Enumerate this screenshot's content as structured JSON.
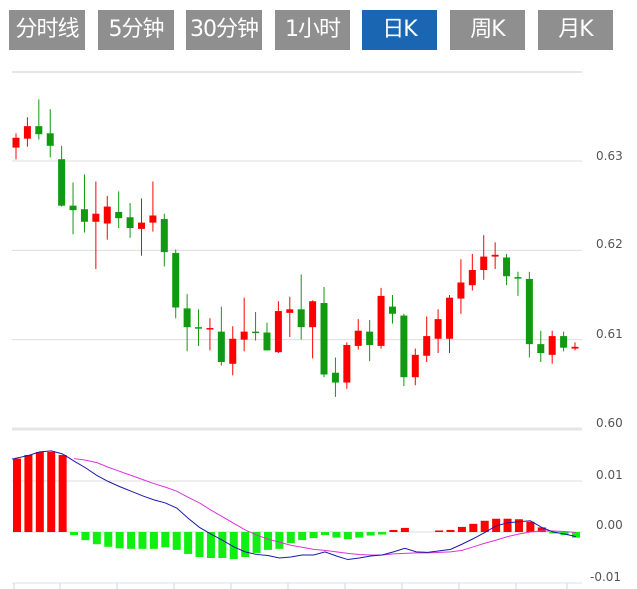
{
  "tabs": [
    {
      "label": "分时线",
      "active": false
    },
    {
      "label": "5分钟",
      "active": false
    },
    {
      "label": "30分钟",
      "active": false
    },
    {
      "label": "1小时",
      "active": false
    },
    {
      "label": "日K",
      "active": true
    },
    {
      "label": "周K",
      "active": false
    },
    {
      "label": "月K",
      "active": false
    }
  ],
  "colors": {
    "tab_bg": "#8f8f8f",
    "tab_active": "#1a66b3",
    "up": "#ff0000",
    "down": "#119911",
    "hist_up": "#ff0000",
    "hist_down": "#11ee11",
    "dif": "#1a1aaa",
    "dea": "#dd33dd",
    "grid": "#dddddd"
  },
  "chart_data": [
    {
      "type": "candlestick",
      "yticks": [
        "0.63",
        "0.62",
        "0.61",
        "0.60"
      ],
      "ylim": [
        0.6,
        0.6412
      ],
      "grid": true,
      "ohlc": [
        [
          0.6315,
          0.6331,
          0.6302,
          0.6326
        ],
        [
          0.6325,
          0.6349,
          0.6316,
          0.6339
        ],
        [
          0.6339,
          0.6369,
          0.6324,
          0.633
        ],
        [
          0.6331,
          0.6358,
          0.6304,
          0.6317
        ],
        [
          0.6302,
          0.6317,
          0.6249,
          0.625
        ],
        [
          0.625,
          0.6276,
          0.6218,
          0.6245
        ],
        [
          0.6246,
          0.6285,
          0.622,
          0.6232
        ],
        [
          0.6232,
          0.6277,
          0.6179,
          0.6241
        ],
        [
          0.623,
          0.6261,
          0.6212,
          0.6249
        ],
        [
          0.6243,
          0.6266,
          0.6225,
          0.6236
        ],
        [
          0.6237,
          0.6253,
          0.6214,
          0.6225
        ],
        [
          0.6224,
          0.6258,
          0.6194,
          0.6231
        ],
        [
          0.6231,
          0.6277,
          0.6221,
          0.6239
        ],
        [
          0.6235,
          0.6241,
          0.6182,
          0.6198
        ],
        [
          0.6197,
          0.6201,
          0.6124,
          0.6136
        ],
        [
          0.6135,
          0.6151,
          0.6087,
          0.6114
        ],
        [
          0.6114,
          0.6134,
          0.6093,
          0.6113
        ],
        [
          0.6112,
          0.6124,
          0.6088,
          0.6113
        ],
        [
          0.6109,
          0.6137,
          0.6071,
          0.6075
        ],
        [
          0.6073,
          0.6115,
          0.606,
          0.6101
        ],
        [
          0.61,
          0.6147,
          0.6087,
          0.6109
        ],
        [
          0.6109,
          0.6131,
          0.6099,
          0.6108
        ],
        [
          0.6108,
          0.6119,
          0.6088,
          0.6088
        ],
        [
          0.6086,
          0.6143,
          0.6085,
          0.6132
        ],
        [
          0.613,
          0.6148,
          0.6103,
          0.6134
        ],
        [
          0.6134,
          0.6173,
          0.61,
          0.6114
        ],
        [
          0.6114,
          0.6144,
          0.6079,
          0.6143
        ],
        [
          0.6141,
          0.6159,
          0.6058,
          0.6061
        ],
        [
          0.6063,
          0.608,
          0.6036,
          0.6052
        ],
        [
          0.6052,
          0.6097,
          0.6045,
          0.6094
        ],
        [
          0.6093,
          0.6123,
          0.6089,
          0.611
        ],
        [
          0.6109,
          0.6122,
          0.6076,
          0.6094
        ],
        [
          0.6093,
          0.6158,
          0.609,
          0.6149
        ],
        [
          0.6137,
          0.615,
          0.6118,
          0.6129
        ],
        [
          0.6127,
          0.6129,
          0.6048,
          0.6058
        ],
        [
          0.6058,
          0.609,
          0.6049,
          0.6083
        ],
        [
          0.6082,
          0.6126,
          0.6075,
          0.6104
        ],
        [
          0.6101,
          0.6134,
          0.6085,
          0.6123
        ],
        [
          0.6101,
          0.615,
          0.6085,
          0.6147
        ],
        [
          0.6146,
          0.619,
          0.6129,
          0.6164
        ],
        [
          0.6161,
          0.6196,
          0.6155,
          0.6178
        ],
        [
          0.6178,
          0.6217,
          0.6167,
          0.6193
        ],
        [
          0.6193,
          0.6209,
          0.6179,
          0.6195
        ],
        [
          0.6192,
          0.6196,
          0.6161,
          0.6171
        ],
        [
          0.617,
          0.6176,
          0.6149,
          0.6169
        ],
        [
          0.6168,
          0.6176,
          0.608,
          0.6095
        ],
        [
          0.6095,
          0.611,
          0.6075,
          0.6085
        ],
        [
          0.6083,
          0.611,
          0.6073,
          0.6104
        ],
        [
          0.6104,
          0.6109,
          0.6087,
          0.6091
        ],
        [
          0.609,
          0.6097,
          0.6088,
          0.6092
        ]
      ]
    },
    {
      "type": "macd",
      "yticks": [
        "0.01",
        "0.00",
        "-0.01"
      ],
      "ylim": [
        -0.01,
        0.0198
      ],
      "grid": true,
      "histogram": [
        0.0144,
        0.0151,
        0.0157,
        0.0157,
        0.0151,
        -0.0006,
        -0.0016,
        -0.0024,
        -0.0029,
        -0.0032,
        -0.0033,
        -0.0033,
        -0.0033,
        -0.003,
        -0.0035,
        -0.0043,
        -0.0049,
        -0.0051,
        -0.0051,
        -0.0053,
        -0.0049,
        -0.0041,
        -0.0035,
        -0.0033,
        -0.0022,
        -0.0016,
        -0.0012,
        -0.0006,
        -0.0011,
        -0.0014,
        -0.0011,
        -0.0007,
        -0.0005,
        0.0004,
        0.0008,
        0.0,
        0.0,
        0.0003,
        0.0004,
        0.001,
        0.0016,
        0.0022,
        0.0026,
        0.0026,
        0.0025,
        0.002,
        0.0009,
        -0.0003,
        -0.0006,
        -0.0011
      ],
      "dif": [
        0.0143,
        0.015,
        0.0157,
        0.0159,
        0.0153,
        0.0139,
        0.0126,
        0.0111,
        0.0099,
        0.0089,
        0.008,
        0.0071,
        0.0063,
        0.0057,
        0.0047,
        0.0027,
        0.0009,
        -0.0004,
        -0.0016,
        -0.0029,
        -0.0039,
        -0.0044,
        -0.0046,
        -0.0051,
        -0.0049,
        -0.0045,
        -0.0045,
        -0.0039,
        -0.0047,
        -0.0054,
        -0.0051,
        -0.0047,
        -0.0045,
        -0.0039,
        -0.0032,
        -0.0039,
        -0.004,
        -0.0037,
        -0.0034,
        -0.0024,
        -0.0013,
        -0.0001,
        0.0012,
        0.0018,
        0.002,
        0.0022,
        0.0009,
        0.0,
        -0.0004,
        -0.0009
      ],
      "dea": [
        null,
        null,
        null,
        null,
        null,
        0.0144,
        0.0141,
        0.0136,
        0.0127,
        0.0119,
        0.0111,
        0.0103,
        0.0095,
        0.0088,
        0.008,
        0.0068,
        0.0057,
        0.0043,
        0.003,
        0.0017,
        0.0004,
        -0.0006,
        -0.0014,
        -0.002,
        -0.0026,
        -0.003,
        -0.0034,
        -0.0036,
        -0.0039,
        -0.0042,
        -0.0044,
        -0.0045,
        -0.0045,
        -0.0043,
        -0.0042,
        -0.0041,
        -0.0041,
        -0.004,
        -0.0039,
        -0.0036,
        -0.0029,
        -0.0022,
        -0.0016,
        -0.0009,
        -0.0004,
        0.0,
        0.0002,
        0.0002,
        0.0001,
        -0.0001
      ]
    }
  ]
}
